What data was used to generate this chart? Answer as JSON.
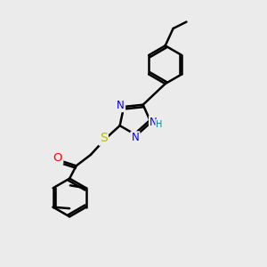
{
  "background_color": "#ebebeb",
  "line_color": "#000000",
  "bond_width": 1.8,
  "atom_colors": {
    "N": "#0000ee",
    "O": "#ff0000",
    "S": "#bbbb00",
    "H": "#008888",
    "C": "#000000"
  },
  "font_size": 8.5,
  "figsize": [
    3.0,
    3.0
  ],
  "dpi": 100
}
